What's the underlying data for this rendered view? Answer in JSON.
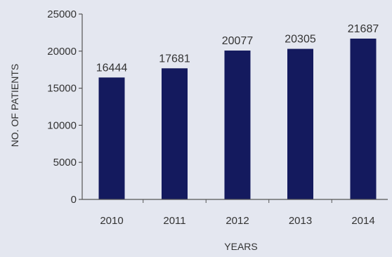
{
  "chart_data": {
    "type": "bar",
    "categories": [
      "2010",
      "2011",
      "2012",
      "2013",
      "2014"
    ],
    "values": [
      16444,
      17681,
      20077,
      20305,
      21687
    ],
    "data_labels": [
      "16444",
      "17681",
      "20077",
      "20305",
      "21687"
    ],
    "xlabel": "YEARS",
    "ylabel": "NO. OF PATIENTS",
    "ylim": [
      0,
      25000
    ],
    "yticks": [
      0,
      5000,
      10000,
      15000,
      20000,
      25000
    ],
    "ytick_labels": [
      "0",
      "5000",
      "10000",
      "15000",
      "20000",
      "25000"
    ],
    "grid": false,
    "legend": "none",
    "bar_color": "#141a5e",
    "axis_color": "#555555",
    "background_color": "#e4e7f0"
  }
}
